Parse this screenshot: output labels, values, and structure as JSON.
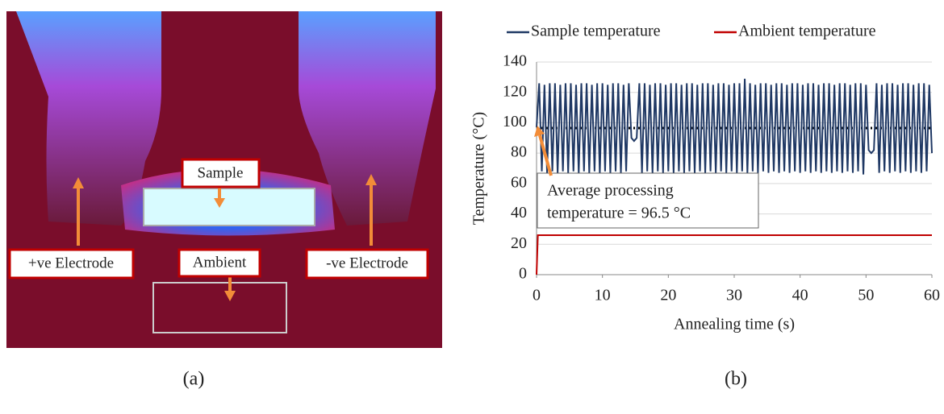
{
  "panel_a": {
    "sample_label": "Sample",
    "ambient_label": "Ambient",
    "positive_label": "+ve Electrode",
    "negative_label": "-ve Electrode",
    "caption": "(a)"
  },
  "panel_b_caption": "(b)",
  "chart_data": {
    "type": "line",
    "xlabel": "Annealing time (s)",
    "ylabel": "Temperature (°C)",
    "xlim": [
      0,
      60
    ],
    "xticks": [
      0,
      10,
      20,
      30,
      40,
      50,
      60
    ],
    "ylim": [
      0,
      140
    ],
    "yticks": [
      0,
      20,
      40,
      60,
      80,
      100,
      120,
      140
    ],
    "grid": true,
    "reference_line": {
      "value": 96.5,
      "label_lines": [
        "Average processing",
        "temperature = 96.5 °C"
      ]
    },
    "series": [
      {
        "name": "Sample temperature",
        "color": "#1f3864",
        "x": [
          0,
          0.4,
          0.8,
          1.2,
          1.6,
          2,
          2.4,
          2.8,
          3.2,
          3.6,
          4,
          4.4,
          4.8,
          5.2,
          5.6,
          6,
          6.4,
          6.8,
          7.2,
          7.6,
          8,
          8.4,
          8.8,
          9.2,
          9.6,
          10,
          10.4,
          10.8,
          11.2,
          11.6,
          12,
          12.4,
          12.8,
          13.2,
          13.6,
          14,
          14.4,
          14.8,
          15.2,
          15.6,
          16,
          16.4,
          16.8,
          17.2,
          17.6,
          18,
          18.4,
          18.8,
          19.2,
          19.6,
          20,
          20.4,
          20.8,
          21.2,
          21.6,
          22,
          22.4,
          22.8,
          23.2,
          23.6,
          24,
          24.4,
          24.8,
          25.2,
          25.6,
          26,
          26.4,
          26.8,
          27.2,
          27.6,
          28,
          28.4,
          28.8,
          29.2,
          29.6,
          30,
          30.4,
          30.8,
          31.2,
          31.6,
          32,
          32.4,
          32.8,
          33.2,
          33.6,
          34,
          34.4,
          34.8,
          35.2,
          35.6,
          36,
          36.4,
          36.8,
          37.2,
          37.6,
          38,
          38.4,
          38.8,
          39.2,
          39.6,
          40,
          40.4,
          40.8,
          41.2,
          41.6,
          42,
          42.4,
          42.8,
          43.2,
          43.6,
          44,
          44.4,
          44.8,
          45.2,
          45.6,
          46,
          46.4,
          46.8,
          47.2,
          47.6,
          48,
          48.4,
          48.8,
          49.2,
          49.6,
          50,
          50.4,
          50.8,
          51.2,
          51.6,
          52,
          52.4,
          52.8,
          53.2,
          53.6,
          54,
          54.4,
          54.8,
          55.2,
          55.6,
          56,
          56.4,
          56.8,
          57.2,
          57.6,
          58,
          58.4,
          58.8,
          59.2,
          59.6,
          60
        ],
        "values": [
          97,
          126,
          68,
          125,
          67,
          126,
          68,
          126,
          67,
          125,
          68,
          126,
          67,
          126,
          68,
          125,
          67,
          126,
          68,
          126,
          67,
          125,
          68,
          126,
          67,
          126,
          68,
          125,
          67,
          126,
          68,
          126,
          67,
          125,
          68,
          126,
          90,
          88,
          90,
          126,
          67,
          126,
          68,
          125,
          67,
          126,
          68,
          126,
          67,
          125,
          68,
          126,
          67,
          126,
          68,
          125,
          67,
          126,
          68,
          126,
          67,
          125,
          68,
          126,
          67,
          126,
          68,
          125,
          67,
          126,
          68,
          126,
          67,
          125,
          68,
          126,
          67,
          126,
          68,
          129,
          67,
          126,
          68,
          125,
          67,
          126,
          68,
          126,
          67,
          125,
          68,
          126,
          67,
          126,
          68,
          125,
          67,
          126,
          68,
          126,
          67,
          125,
          68,
          126,
          67,
          126,
          68,
          125,
          67,
          126,
          68,
          126,
          67,
          125,
          68,
          126,
          67,
          126,
          68,
          125,
          67,
          126,
          68,
          126,
          66,
          125,
          82,
          80,
          82,
          126,
          67,
          125,
          68,
          126,
          67,
          126,
          68,
          125,
          67,
          126,
          68,
          126,
          67,
          125,
          68,
          126,
          67,
          126,
          68,
          125,
          80
        ]
      },
      {
        "name": "Ambient temperature",
        "color": "#c00000",
        "x": [
          0,
          0.2,
          60
        ],
        "values": [
          0,
          26,
          26
        ]
      }
    ]
  }
}
